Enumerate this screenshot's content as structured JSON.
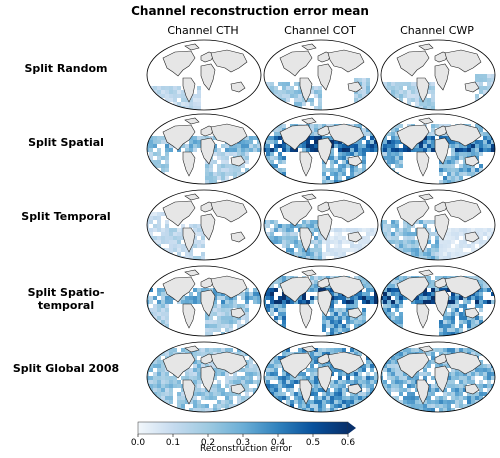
{
  "chart_data": {
    "type": "heatmap",
    "title": "Channel reconstruction error mean",
    "columns": [
      "Channel CTH",
      "Channel COT",
      "Channel CWP"
    ],
    "rows": [
      "Split Random",
      "Split Spatial",
      "Split Temporal",
      "Split Spatio-temporal",
      "Split Global 2008"
    ],
    "colorbar": {
      "label": "Reconstruction error",
      "ticks": [
        "0.0",
        "0.1",
        "0.2",
        "0.3",
        "0.4",
        "0.5",
        "0.6"
      ],
      "range": [
        0.0,
        0.6
      ],
      "extend": "max",
      "colormap": [
        "#f2f7fb",
        "#c6dbef",
        "#9ecae1",
        "#6baed6",
        "#3182bd",
        "#08519c",
        "#08306b"
      ]
    },
    "panels": [
      {
        "row": "Split Random",
        "coverage": "south-atlantic-pacific patches",
        "intensity": [
          0.12,
          0.18,
          0.16
        ]
      },
      {
        "row": "Split Spatial",
        "coverage": "tropical band and southern hemisphere blocks",
        "intensity": [
          0.2,
          0.35,
          0.33
        ]
      },
      {
        "row": "Split Temporal",
        "coverage": "south atlantic and tropical atlantic",
        "intensity": [
          0.14,
          0.22,
          0.2
        ]
      },
      {
        "row": "Split Spatio-temporal",
        "coverage": "tropical band and southern blocks",
        "intensity": [
          0.22,
          0.38,
          0.36
        ]
      },
      {
        "row": "Split Global 2008",
        "coverage": "global oceans",
        "intensity": [
          0.2,
          0.3,
          0.26
        ]
      }
    ],
    "grid": false
  }
}
